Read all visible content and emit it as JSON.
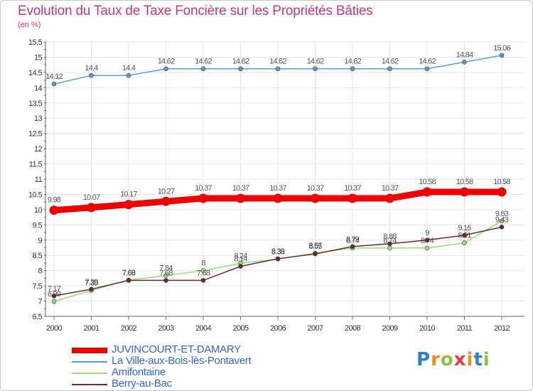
{
  "header": {
    "title": "Evolution du Taux de Taxe Foncière sur les Propriétés Bâties",
    "unit": "(en %)"
  },
  "chart_data": {
    "type": "line",
    "title": "Evolution du Taux de Taxe Foncière sur les Propriétés Bâties",
    "ylabel": "(en %)",
    "xlabel": "",
    "ylim": [
      6.5,
      15.5
    ],
    "y_ticks": [
      "6.5",
      "7",
      "7.5",
      "8",
      "8.5",
      "9",
      "9.5",
      "10",
      "10.5",
      "11",
      "11.5",
      "12",
      "12.5",
      "13",
      "13.5",
      "14",
      "14.5",
      "15",
      "15.5"
    ],
    "categories": [
      "2000",
      "2001",
      "2002",
      "2003",
      "2004",
      "2005",
      "2006",
      "2007",
      "2008",
      "2009",
      "2010",
      "2011",
      "2012"
    ],
    "series": [
      {
        "name": "La Ville-aux-Bois-lès-Pontavert",
        "color": "#5b9bd5",
        "values": [
          14.12,
          14.4,
          14.4,
          14.62,
          14.62,
          14.62,
          14.62,
          14.62,
          14.62,
          14.62,
          14.62,
          14.84,
          15.06
        ],
        "labels": [
          "14.12",
          "14.4",
          "14.4",
          "14.62",
          "14.62",
          "14.62",
          "14.62",
          "14.62",
          "14.62",
          "14.62",
          "14.62",
          "14.84",
          "15.06"
        ]
      },
      {
        "name": "Amifontaine",
        "color": "#99dd77",
        "values": [
          6.99,
          7.35,
          7.69,
          7.84,
          8.0,
          8.24,
          8.38,
          8.57,
          8.74,
          8.74,
          8.74,
          8.91,
          9.63
        ],
        "labels": [
          "6.99",
          "7.35",
          "7.69",
          "7.84",
          "8",
          "8.24",
          "8.38",
          "8.57",
          "8.74",
          "8.74",
          "8.74",
          "8.91",
          "9.63"
        ]
      },
      {
        "name": "Berry-au-Bac",
        "color": "#6b2a2a",
        "values": [
          7.17,
          7.39,
          7.68,
          7.68,
          7.68,
          8.14,
          8.39,
          8.55,
          8.79,
          8.88,
          9.0,
          9.16,
          9.43
        ],
        "labels": [
          "7.17",
          "7.39",
          "7.68",
          "7.68",
          "7.68",
          "8.14",
          "8.39",
          "8.55",
          "8.79",
          "8.88",
          "9",
          "9.16",
          "9.43"
        ]
      },
      {
        "name": "JUVINCOURT-ET-DAMARY",
        "color": "#ee0000",
        "values": [
          9.98,
          10.07,
          10.17,
          10.27,
          10.37,
          10.37,
          10.37,
          10.37,
          10.37,
          10.37,
          10.58,
          10.58,
          10.58
        ],
        "labels": [
          "9.98",
          "10.07",
          "10.17",
          "10.27",
          "10.37",
          "10.37",
          "10.37",
          "10.37",
          "10.37",
          "10.37",
          "10.58",
          "10.58",
          "10.58"
        ]
      }
    ],
    "legend": [
      "JUVINCOURT-ET-DAMARY",
      "La Ville-aux-Bois-lès-Pontavert",
      "Amifontaine",
      "Berry-au-Bac"
    ],
    "legend_placement": "bottom-left",
    "grid": true
  },
  "legend": {
    "items": [
      {
        "label": "JUVINCOURT-ET-DAMARY",
        "color": "#ee0000"
      },
      {
        "label": "La Ville-aux-Bois-lès-Pontavert",
        "color": "#5b9bd5"
      },
      {
        "label": "Amifontaine",
        "color": "#99dd77"
      },
      {
        "label": "Berry-au-Bac",
        "color": "#6b2a2a"
      }
    ]
  },
  "brand": {
    "letters": [
      "P",
      "r",
      "o",
      "x",
      "i",
      "t",
      "i"
    ],
    "colors": [
      "#2f7fd1",
      "#f28c1e",
      "#8cc43e",
      "#e63c3c",
      "#f28c1e",
      "#2f7fd1",
      "#8cc43e"
    ]
  }
}
